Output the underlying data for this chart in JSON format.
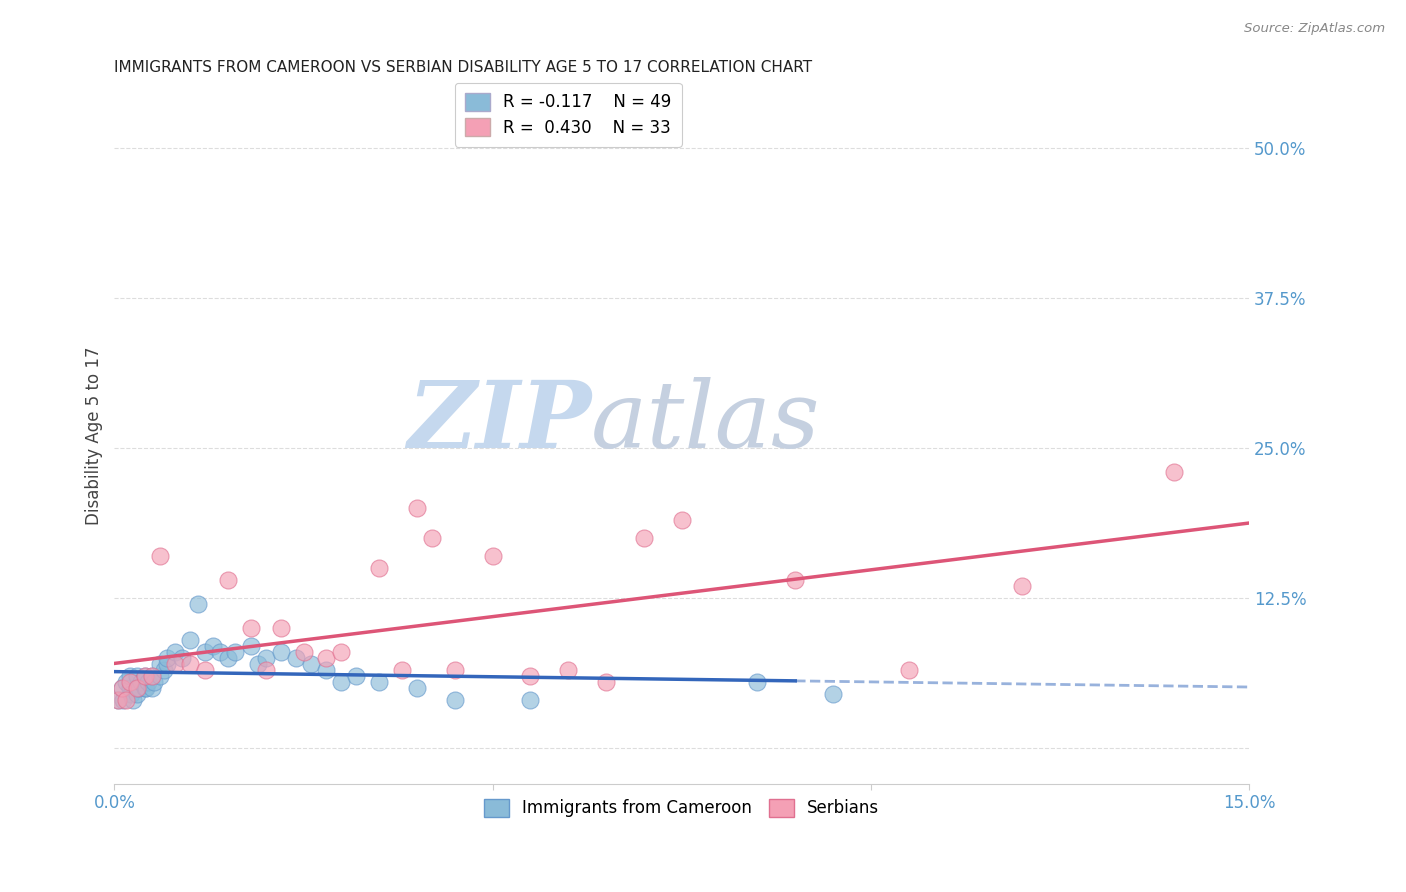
{
  "title": "IMMIGRANTS FROM CAMEROON VS SERBIAN DISABILITY AGE 5 TO 17 CORRELATION CHART",
  "source": "Source: ZipAtlas.com",
  "ylabel": "Disability Age 5 to 17",
  "xmin": 0.0,
  "xmax": 0.15,
  "ymin": -0.03,
  "ymax": 0.55,
  "yticks": [
    0.0,
    0.125,
    0.25,
    0.375,
    0.5
  ],
  "ytick_labels": [
    "",
    "12.5%",
    "25.0%",
    "37.5%",
    "50.0%"
  ],
  "xticks": [
    0.0,
    0.05,
    0.1,
    0.15
  ],
  "xtick_labels": [
    "0.0%",
    "",
    "",
    "15.0%"
  ],
  "series1_name": "Immigrants from Cameroon",
  "series1_R": -0.117,
  "series1_N": 49,
  "series1_color": "#8abbd8",
  "series2_name": "Serbians",
  "series2_R": 0.43,
  "series2_N": 33,
  "series2_color": "#f4a0b5",
  "series2_edge_color": "#e07090",
  "series1_edge_color": "#6699cc",
  "trend1_color": "#3366bb",
  "trend2_color": "#dd5577",
  "background_color": "#ffffff",
  "grid_color": "#dddddd",
  "title_color": "#222222",
  "axis_label_color": "#444444",
  "tick_label_color": "#5599cc",
  "watermark_zip_color": "#c5d8ee",
  "watermark_atlas_color": "#c5d0e0",
  "series1_x": [
    0.0005,
    0.001,
    0.0012,
    0.0015,
    0.002,
    0.002,
    0.0022,
    0.0025,
    0.003,
    0.003,
    0.003,
    0.0032,
    0.0035,
    0.004,
    0.004,
    0.0042,
    0.0045,
    0.005,
    0.005,
    0.0052,
    0.006,
    0.006,
    0.0065,
    0.007,
    0.007,
    0.008,
    0.009,
    0.01,
    0.011,
    0.012,
    0.013,
    0.014,
    0.015,
    0.016,
    0.018,
    0.019,
    0.02,
    0.022,
    0.024,
    0.026,
    0.028,
    0.03,
    0.032,
    0.035,
    0.04,
    0.045,
    0.055,
    0.085,
    0.095
  ],
  "series1_y": [
    0.04,
    0.05,
    0.04,
    0.055,
    0.05,
    0.06,
    0.045,
    0.04,
    0.05,
    0.06,
    0.045,
    0.05,
    0.055,
    0.05,
    0.06,
    0.05,
    0.055,
    0.05,
    0.06,
    0.055,
    0.06,
    0.07,
    0.065,
    0.07,
    0.075,
    0.08,
    0.075,
    0.09,
    0.12,
    0.08,
    0.085,
    0.08,
    0.075,
    0.08,
    0.085,
    0.07,
    0.075,
    0.08,
    0.075,
    0.07,
    0.065,
    0.055,
    0.06,
    0.055,
    0.05,
    0.04,
    0.04,
    0.055,
    0.045
  ],
  "series2_x": [
    0.0005,
    0.001,
    0.0015,
    0.002,
    0.003,
    0.004,
    0.005,
    0.006,
    0.008,
    0.01,
    0.012,
    0.015,
    0.018,
    0.02,
    0.022,
    0.025,
    0.028,
    0.03,
    0.035,
    0.038,
    0.04,
    0.042,
    0.045,
    0.05,
    0.055,
    0.06,
    0.065,
    0.07,
    0.075,
    0.09,
    0.105,
    0.12,
    0.14
  ],
  "series2_y": [
    0.04,
    0.05,
    0.04,
    0.055,
    0.05,
    0.06,
    0.06,
    0.16,
    0.07,
    0.07,
    0.065,
    0.14,
    0.1,
    0.065,
    0.1,
    0.08,
    0.075,
    0.08,
    0.15,
    0.065,
    0.2,
    0.175,
    0.065,
    0.16,
    0.06,
    0.065,
    0.055,
    0.175,
    0.19,
    0.14,
    0.065,
    0.135,
    0.23
  ]
}
